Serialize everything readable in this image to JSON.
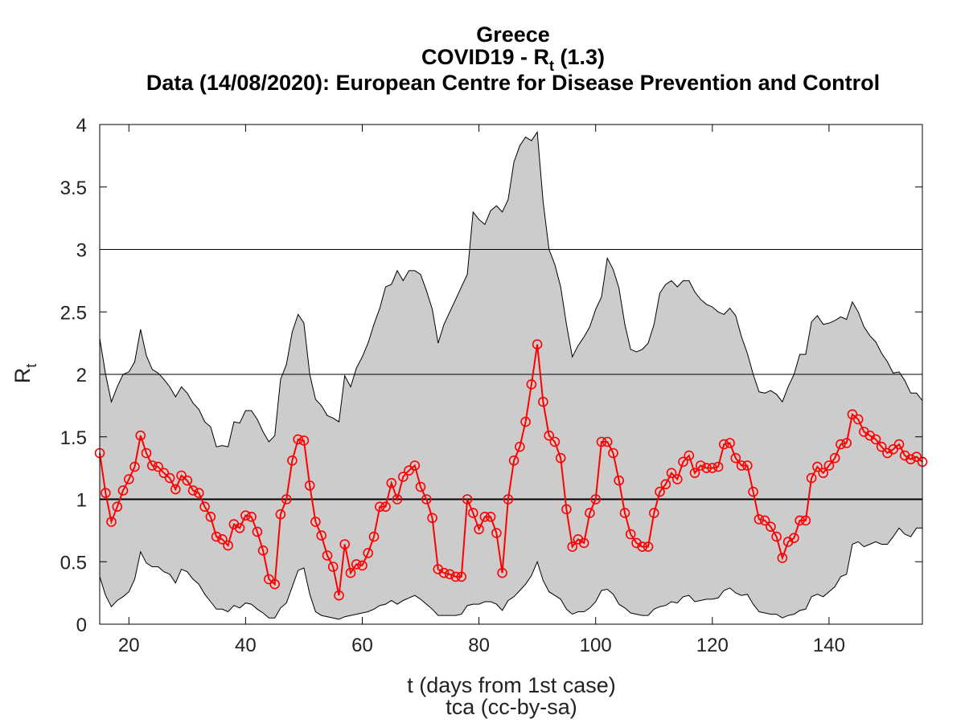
{
  "chart_data": {
    "type": "line",
    "title": {
      "country": "Greece",
      "metric_prefix": "COVID19 - R",
      "metric_subscript": "t",
      "metric_suffix": " (1.3)",
      "source": "Data (14/08/2020): European Centre for Disease Prevention and Control"
    },
    "xlabel": "t (days from 1st case)",
    "ylabel": {
      "main": "R",
      "subscript": "t"
    },
    "credit": "tca (cc-by-sa)",
    "xlim": [
      15,
      156
    ],
    "ylim": [
      0,
      4
    ],
    "xticks": [
      20,
      40,
      60,
      80,
      100,
      120,
      140
    ],
    "yticks": [
      0,
      0.5,
      1,
      1.5,
      2,
      2.5,
      3,
      3.5,
      4
    ],
    "ytick_labels": [
      "0",
      "0.5",
      "1",
      "1.5",
      "2",
      "2.5",
      "3",
      "3.5",
      "4"
    ],
    "reference_lines": [
      1,
      2,
      3
    ],
    "grid": false,
    "colors": {
      "series": "#ff0000",
      "band_fill": "#cccccc",
      "band_edge": "#000000",
      "reference": "#000000"
    },
    "series": [
      {
        "marker": "circle",
        "x": [
          15,
          16,
          17,
          18,
          19,
          20,
          21,
          22,
          23,
          24,
          25,
          26,
          27,
          28,
          29,
          30,
          31,
          32,
          33,
          34,
          35,
          36,
          37,
          38,
          39,
          40,
          41,
          42,
          43,
          44,
          45,
          46,
          47,
          48,
          49,
          50,
          51,
          52,
          53,
          54,
          55,
          56,
          57,
          58,
          59,
          60,
          61,
          62,
          63,
          64,
          65,
          66,
          67,
          68,
          69,
          70,
          71,
          72,
          73,
          74,
          75,
          76,
          77,
          78,
          79,
          80,
          81,
          82,
          83,
          84,
          85,
          86,
          87,
          88,
          89,
          90,
          91,
          92,
          93,
          94,
          95,
          96,
          97,
          98,
          99,
          100,
          101,
          102,
          103,
          104,
          105,
          106,
          107,
          108,
          109,
          110,
          111,
          112,
          113,
          114,
          115,
          116,
          117,
          118,
          119,
          120,
          121,
          122,
          123,
          124,
          125,
          126,
          127,
          128,
          129,
          130,
          131,
          132,
          133,
          134,
          135,
          136,
          137,
          138,
          139,
          140,
          141,
          142,
          143,
          144,
          145,
          146,
          147,
          148,
          149,
          150,
          151,
          152,
          153,
          154,
          155,
          156
        ],
        "y": [
          1.37,
          1.05,
          0.82,
          0.94,
          1.07,
          1.16,
          1.26,
          1.51,
          1.37,
          1.27,
          1.26,
          1.21,
          1.17,
          1.08,
          1.19,
          1.15,
          1.07,
          1.05,
          0.94,
          0.86,
          0.7,
          0.68,
          0.63,
          0.8,
          0.77,
          0.87,
          0.86,
          0.74,
          0.59,
          0.36,
          0.32,
          0.88,
          1.0,
          1.31,
          1.48,
          1.47,
          1.11,
          0.82,
          0.71,
          0.55,
          0.46,
          0.23,
          0.64,
          0.41,
          0.48,
          0.47,
          0.57,
          0.7,
          0.94,
          0.94,
          1.13,
          1.0,
          1.18,
          1.23,
          1.27,
          1.1,
          1.0,
          0.85,
          0.44,
          0.41,
          0.4,
          0.38,
          0.38,
          1.0,
          0.89,
          0.76,
          0.86,
          0.86,
          0.73,
          0.41,
          1.0,
          1.31,
          1.42,
          1.62,
          1.92,
          2.24,
          1.78,
          1.51,
          1.46,
          1.33,
          0.92,
          0.62,
          0.68,
          0.65,
          0.89,
          1.0,
          1.46,
          1.46,
          1.37,
          1.15,
          0.89,
          0.72,
          0.65,
          0.62,
          0.62,
          0.89,
          1.06,
          1.12,
          1.21,
          1.16,
          1.3,
          1.35,
          1.21,
          1.27,
          1.25,
          1.25,
          1.26,
          1.44,
          1.45,
          1.33,
          1.27,
          1.27,
          1.06,
          0.84,
          0.83,
          0.78,
          0.7,
          0.53,
          0.66,
          0.69,
          0.83,
          0.83,
          1.17,
          1.26,
          1.21,
          1.27,
          1.33,
          1.44,
          1.45,
          1.68,
          1.64,
          1.54,
          1.51,
          1.48,
          1.42,
          1.37,
          1.4,
          1.44,
          1.35,
          1.32,
          1.34,
          1.3
        ]
      }
    ],
    "band": {
      "x": [
        15,
        16,
        17,
        18,
        19,
        20,
        21,
        22,
        23,
        24,
        25,
        26,
        27,
        28,
        29,
        30,
        31,
        32,
        33,
        34,
        35,
        36,
        37,
        38,
        39,
        40,
        41,
        42,
        43,
        44,
        45,
        46,
        47,
        48,
        49,
        50,
        51,
        52,
        53,
        54,
        55,
        56,
        57,
        58,
        59,
        60,
        61,
        62,
        63,
        64,
        65,
        66,
        67,
        68,
        69,
        70,
        71,
        72,
        73,
        74,
        75,
        76,
        77,
        78,
        79,
        80,
        81,
        82,
        83,
        84,
        85,
        86,
        87,
        88,
        89,
        90,
        91,
        92,
        93,
        94,
        95,
        96,
        97,
        98,
        99,
        100,
        101,
        102,
        103,
        104,
        105,
        106,
        107,
        108,
        109,
        110,
        111,
        112,
        113,
        114,
        115,
        116,
        117,
        118,
        119,
        120,
        121,
        122,
        123,
        124,
        125,
        126,
        127,
        128,
        129,
        130,
        131,
        132,
        133,
        134,
        135,
        136,
        137,
        138,
        139,
        140,
        141,
        142,
        143,
        144,
        145,
        146,
        147,
        148,
        149,
        150,
        151,
        152,
        153,
        154,
        155,
        156
      ],
      "upper": [
        2.29,
        2.0,
        1.78,
        1.9,
        2.0,
        2.02,
        2.1,
        2.36,
        2.15,
        2.04,
        2.01,
        1.96,
        1.9,
        1.82,
        1.9,
        1.85,
        1.77,
        1.72,
        1.62,
        1.58,
        1.42,
        1.43,
        1.42,
        1.62,
        1.61,
        1.71,
        1.71,
        1.64,
        1.54,
        1.46,
        1.51,
        1.96,
        2.08,
        2.34,
        2.48,
        2.41,
        2.0,
        1.8,
        1.75,
        1.67,
        1.65,
        1.62,
        1.99,
        1.9,
        2.05,
        2.14,
        2.25,
        2.4,
        2.53,
        2.7,
        2.72,
        2.83,
        2.75,
        2.83,
        2.83,
        2.8,
        2.67,
        2.52,
        2.25,
        2.4,
        2.5,
        2.6,
        2.7,
        2.8,
        3.3,
        3.24,
        3.2,
        3.31,
        3.35,
        3.3,
        3.4,
        3.7,
        3.83,
        3.9,
        3.87,
        3.94,
        3.38,
        3.0,
        2.88,
        2.7,
        2.4,
        2.14,
        2.23,
        2.3,
        2.38,
        2.52,
        2.62,
        2.93,
        2.84,
        2.69,
        2.4,
        2.2,
        2.18,
        2.2,
        2.25,
        2.4,
        2.65,
        2.72,
        2.75,
        2.7,
        2.75,
        2.75,
        2.66,
        2.6,
        2.56,
        2.54,
        2.5,
        2.48,
        2.53,
        2.47,
        2.3,
        2.17,
        2.0,
        1.86,
        1.85,
        1.87,
        1.84,
        1.78,
        1.9,
        2.0,
        2.16,
        2.16,
        2.42,
        2.47,
        2.4,
        2.41,
        2.43,
        2.46,
        2.44,
        2.58,
        2.5,
        2.38,
        2.31,
        2.26,
        2.17,
        2.1,
        2.01,
        2.02,
        1.95,
        1.85,
        1.85,
        1.79
      ],
      "lower": [
        0.38,
        0.23,
        0.14,
        0.19,
        0.22,
        0.26,
        0.36,
        0.58,
        0.49,
        0.46,
        0.46,
        0.42,
        0.4,
        0.33,
        0.44,
        0.42,
        0.36,
        0.32,
        0.24,
        0.18,
        0.12,
        0.12,
        0.1,
        0.15,
        0.13,
        0.17,
        0.16,
        0.12,
        0.09,
        0.05,
        0.05,
        0.13,
        0.17,
        0.3,
        0.43,
        0.45,
        0.24,
        0.1,
        0.07,
        0.06,
        0.05,
        0.04,
        0.06,
        0.07,
        0.08,
        0.09,
        0.1,
        0.12,
        0.15,
        0.16,
        0.19,
        0.16,
        0.19,
        0.21,
        0.23,
        0.2,
        0.16,
        0.12,
        0.07,
        0.07,
        0.07,
        0.07,
        0.08,
        0.15,
        0.16,
        0.16,
        0.18,
        0.18,
        0.16,
        0.11,
        0.19,
        0.22,
        0.27,
        0.32,
        0.39,
        0.5,
        0.35,
        0.26,
        0.23,
        0.2,
        0.12,
        0.08,
        0.1,
        0.1,
        0.13,
        0.18,
        0.27,
        0.28,
        0.24,
        0.16,
        0.13,
        0.09,
        0.08,
        0.07,
        0.07,
        0.12,
        0.14,
        0.15,
        0.18,
        0.17,
        0.22,
        0.23,
        0.18,
        0.19,
        0.2,
        0.2,
        0.21,
        0.27,
        0.29,
        0.25,
        0.23,
        0.24,
        0.16,
        0.1,
        0.09,
        0.08,
        0.08,
        0.05,
        0.07,
        0.08,
        0.11,
        0.12,
        0.22,
        0.24,
        0.22,
        0.26,
        0.3,
        0.38,
        0.4,
        0.64,
        0.66,
        0.62,
        0.64,
        0.66,
        0.64,
        0.64,
        0.7,
        0.77,
        0.72,
        0.7,
        0.77,
        0.77
      ]
    }
  }
}
